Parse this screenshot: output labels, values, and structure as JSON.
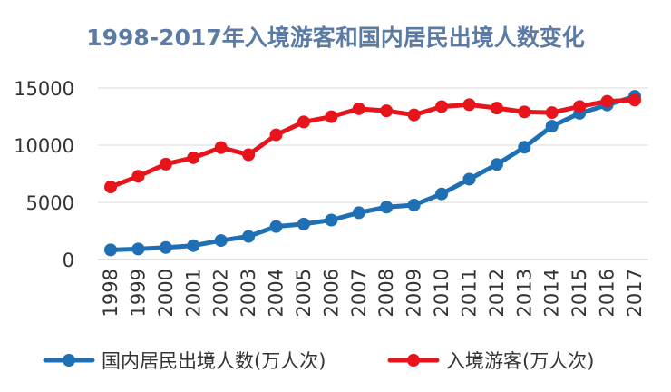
{
  "chart_data": {
    "type": "line",
    "title": "1998-2017年入境游客和国内居民出境人数变化",
    "xlabel": "",
    "ylabel": "",
    "ylim": [
      0,
      15000
    ],
    "yticks": [
      0,
      5000,
      10000,
      15000
    ],
    "grid": true,
    "legend_position": "bottom",
    "categories": [
      "1998",
      "1999",
      "2000",
      "2001",
      "2002",
      "2003",
      "2004",
      "2005",
      "2006",
      "2007",
      "2008",
      "2009",
      "2010",
      "2011",
      "2012",
      "2013",
      "2014",
      "2015",
      "2016",
      "2017"
    ],
    "series": [
      {
        "name": "国内居民出境人数(万人次)",
        "color": "#1f6fb4",
        "values": [
          843,
          923,
          1047,
          1213,
          1660,
          2022,
          2885,
          3103,
          3452,
          4095,
          4584,
          4766,
          5739,
          7025,
          8318,
          9819,
          11659,
          12786,
          13513,
          14273
        ]
      },
      {
        "name": "入境游客(万人次)",
        "color": "#e8141c",
        "values": [
          6348,
          7280,
          8344,
          8901,
          9791,
          9166,
          10904,
          12029,
          12494,
          13187,
          13003,
          12648,
          13376,
          13542,
          13241,
          12908,
          12850,
          13382,
          13844,
          13948
        ]
      }
    ]
  }
}
